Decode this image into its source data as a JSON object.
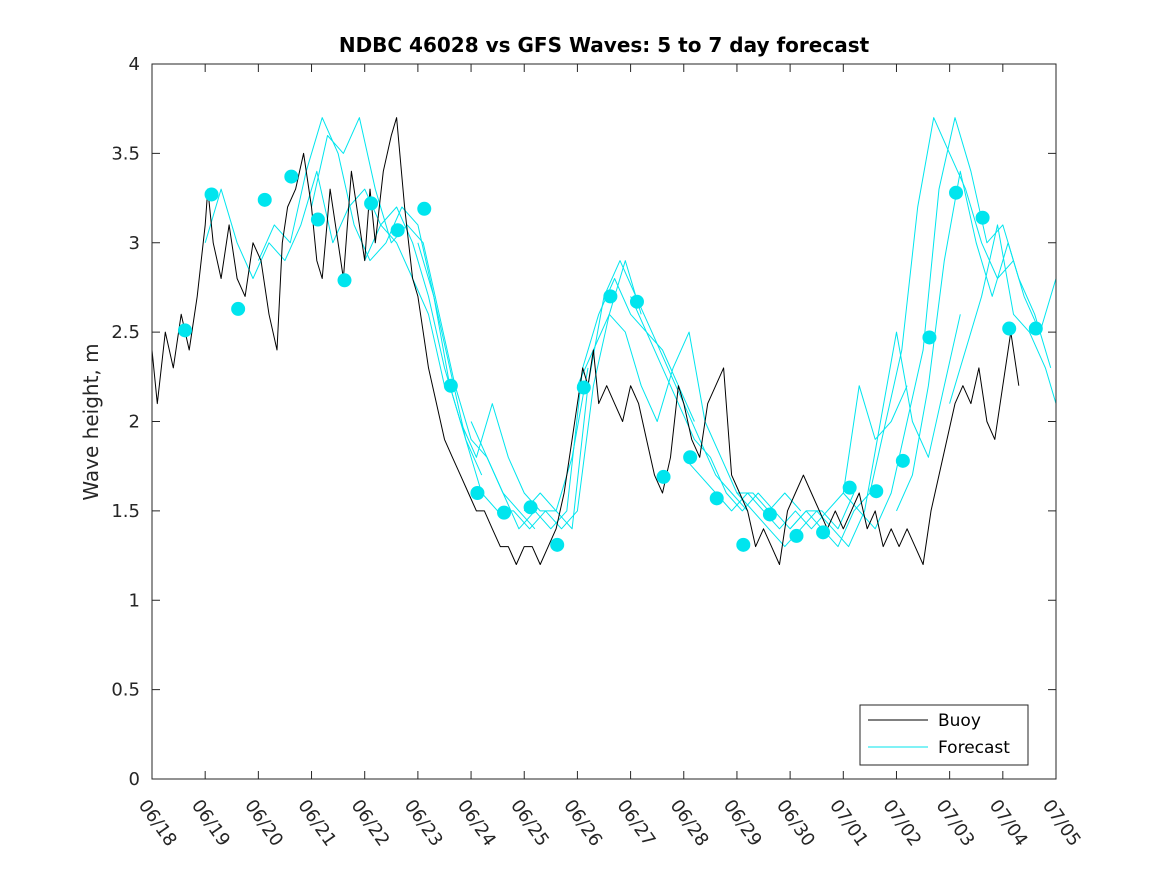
{
  "chart_data": {
    "type": "line",
    "title": "NDBC 46028 vs GFS Waves: 5 to 7 day forecast",
    "ylabel": "Wave height, m",
    "xlabel": "",
    "ylim": [
      0,
      4
    ],
    "yticks": [
      0,
      0.5,
      1,
      1.5,
      2,
      2.5,
      3,
      3.5,
      4
    ],
    "ytick_labels": [
      "0",
      "0.5",
      "1",
      "1.5",
      "2",
      "2.5",
      "3",
      "3.5",
      "4"
    ],
    "x_range_days": [
      0,
      17
    ],
    "xticks": [
      0,
      1,
      2,
      3,
      4,
      5,
      6,
      7,
      8,
      9,
      10,
      11,
      12,
      13,
      14,
      15,
      16,
      17
    ],
    "xtick_labels": [
      "06/18",
      "06/19",
      "06/20",
      "06/21",
      "06/22",
      "06/23",
      "06/24",
      "06/25",
      "06/26",
      "06/27",
      "06/28",
      "06/29",
      "06/30",
      "07/01",
      "07/02",
      "07/03",
      "07/04",
      "07/05"
    ],
    "legend": {
      "placement": "bottom-right",
      "entries": [
        "Buoy",
        "Forecast"
      ]
    },
    "colors": {
      "buoy": "#000000",
      "forecast": "#00e5ee",
      "marker": "#00e5ee"
    },
    "series": [
      {
        "name": "Buoy",
        "kind": "buoy",
        "x": [
          0,
          0.1,
          0.25,
          0.4,
          0.55,
          0.7,
          0.85,
          1.0,
          1.05,
          1.15,
          1.3,
          1.45,
          1.6,
          1.75,
          1.9,
          2.05,
          2.2,
          2.35,
          2.45,
          2.55,
          2.7,
          2.85,
          3.0,
          3.1,
          3.2,
          3.35,
          3.5,
          3.6,
          3.75,
          3.9,
          4.0,
          4.1,
          4.2,
          4.35,
          4.5,
          4.6,
          4.75,
          4.9,
          5.0,
          5.1,
          5.2,
          5.35,
          5.5,
          5.65,
          5.8,
          5.95,
          6.1,
          6.25,
          6.4,
          6.55,
          6.7,
          6.85,
          7.0,
          7.15,
          7.3,
          7.45,
          7.6,
          7.75,
          7.9,
          8.0,
          8.1,
          8.2,
          8.3,
          8.4,
          8.55,
          8.7,
          8.85,
          9.0,
          9.15,
          9.3,
          9.45,
          9.6,
          9.75,
          9.9,
          10.0,
          10.15,
          10.3,
          10.45,
          10.6,
          10.75,
          10.9,
          11.05,
          11.2,
          11.35,
          11.5,
          11.65,
          11.8,
          11.95,
          12.1,
          12.25,
          12.4,
          12.55,
          12.7,
          12.85,
          13.0,
          13.15,
          13.3,
          13.45,
          13.6,
          13.75,
          13.9,
          14.05,
          14.2,
          14.35,
          14.5,
          14.65,
          14.8,
          14.95,
          15.1,
          15.25,
          15.4,
          15.55,
          15.7,
          15.85,
          16.0,
          16.15,
          16.3
        ],
        "y": [
          2.4,
          2.1,
          2.5,
          2.3,
          2.6,
          2.4,
          2.7,
          3.1,
          3.3,
          3.0,
          2.8,
          3.1,
          2.8,
          2.7,
          3.0,
          2.9,
          2.6,
          2.4,
          3.0,
          3.2,
          3.3,
          3.5,
          3.2,
          2.9,
          2.8,
          3.3,
          3.0,
          2.8,
          3.4,
          3.1,
          2.9,
          3.3,
          3.0,
          3.4,
          3.6,
          3.7,
          3.2,
          2.8,
          2.7,
          2.5,
          2.3,
          2.1,
          1.9,
          1.8,
          1.7,
          1.6,
          1.5,
          1.5,
          1.4,
          1.3,
          1.3,
          1.2,
          1.3,
          1.3,
          1.2,
          1.3,
          1.4,
          1.6,
          1.9,
          2.1,
          2.3,
          2.2,
          2.4,
          2.1,
          2.2,
          2.1,
          2.0,
          2.2,
          2.1,
          1.9,
          1.7,
          1.6,
          1.8,
          2.2,
          2.1,
          1.9,
          1.8,
          2.1,
          2.2,
          2.3,
          1.7,
          1.6,
          1.5,
          1.3,
          1.4,
          1.3,
          1.2,
          1.5,
          1.6,
          1.7,
          1.6,
          1.5,
          1.4,
          1.5,
          1.4,
          1.5,
          1.6,
          1.4,
          1.5,
          1.3,
          1.4,
          1.3,
          1.4,
          1.3,
          1.2,
          1.5,
          1.7,
          1.9,
          2.1,
          2.2,
          2.1,
          2.3,
          2.0,
          1.9,
          2.2,
          2.5,
          2.2
        ]
      },
      {
        "kind": "forecast",
        "x": [
          1.0,
          1.3,
          1.6,
          1.9,
          2.2,
          2.5,
          2.8,
          3.1,
          3.4,
          3.7,
          4.0,
          4.3,
          4.6,
          4.9,
          5.2,
          5.5
        ],
        "y": [
          3.0,
          3.3,
          3.0,
          2.8,
          3.0,
          2.9,
          3.1,
          3.4,
          3.0,
          3.2,
          3.3,
          3.1,
          3.0,
          2.8,
          2.6,
          2.2
        ]
      },
      {
        "kind": "forecast",
        "x": [
          2.0,
          2.3,
          2.6,
          2.9,
          3.2,
          3.5,
          3.8,
          4.1,
          4.4,
          4.7,
          5.0,
          5.3,
          5.6,
          5.9,
          6.2
        ],
        "y": [
          2.9,
          3.1,
          3.0,
          3.4,
          3.7,
          3.5,
          3.1,
          2.9,
          3.0,
          3.2,
          3.1,
          2.7,
          2.2,
          1.9,
          1.7
        ]
      },
      {
        "kind": "forecast",
        "x": [
          3.0,
          3.3,
          3.6,
          3.9,
          4.2,
          4.5,
          4.8,
          5.1,
          5.4,
          5.7,
          6.0,
          6.3,
          6.6,
          6.9,
          7.2
        ],
        "y": [
          3.2,
          3.6,
          3.5,
          3.7,
          3.3,
          3.0,
          3.1,
          3.0,
          2.6,
          2.2,
          1.9,
          1.8,
          1.6,
          1.5,
          1.4
        ]
      },
      {
        "kind": "forecast",
        "x": [
          4.0,
          4.3,
          4.6,
          4.9,
          5.2,
          5.5,
          5.8,
          6.1,
          6.4,
          6.7,
          7.0,
          7.3,
          7.6,
          7.9,
          8.2
        ],
        "y": [
          2.9,
          3.1,
          3.2,
          3.0,
          2.7,
          2.3,
          2.0,
          1.8,
          2.1,
          1.8,
          1.6,
          1.5,
          1.5,
          1.8,
          2.3
        ]
      },
      {
        "kind": "forecast",
        "x": [
          5.0,
          5.3,
          5.6,
          5.9,
          6.2,
          6.5,
          6.8,
          7.1,
          7.4,
          7.7,
          8.0,
          8.3,
          8.6,
          8.9,
          9.2
        ],
        "y": [
          3.0,
          2.7,
          2.3,
          1.9,
          1.6,
          1.5,
          1.5,
          1.4,
          1.5,
          1.4,
          1.5,
          2.2,
          2.6,
          2.9,
          2.6
        ]
      },
      {
        "kind": "forecast",
        "x": [
          6.0,
          6.3,
          6.6,
          6.9,
          7.2,
          7.5,
          7.8,
          8.1,
          8.4,
          8.7,
          9.0,
          9.3,
          9.6,
          9.9,
          10.2
        ],
        "y": [
          2.0,
          1.8,
          1.6,
          1.4,
          1.5,
          1.4,
          1.5,
          2.3,
          2.6,
          2.8,
          2.6,
          2.5,
          2.4,
          2.2,
          2.0
        ]
      },
      {
        "kind": "forecast",
        "x": [
          7.0,
          7.3,
          7.6,
          7.9,
          8.2,
          8.5,
          8.8,
          9.1,
          9.4,
          9.7,
          10.0,
          10.3,
          10.6,
          10.9,
          11.2
        ],
        "y": [
          1.5,
          1.6,
          1.5,
          1.4,
          2.2,
          2.7,
          2.9,
          2.7,
          2.5,
          2.3,
          2.1,
          1.9,
          1.7,
          1.6,
          1.5
        ]
      },
      {
        "kind": "forecast",
        "x": [
          8.0,
          8.3,
          8.6,
          8.9,
          9.2,
          9.5,
          9.8,
          10.1,
          10.4,
          10.7,
          11.0,
          11.3,
          11.6,
          11.9,
          12.2
        ],
        "y": [
          2.2,
          2.4,
          2.6,
          2.5,
          2.2,
          2.0,
          2.3,
          2.5,
          2.0,
          1.8,
          1.6,
          1.6,
          1.5,
          1.6,
          1.5
        ]
      },
      {
        "kind": "forecast",
        "x": [
          9.0,
          9.3,
          9.6,
          9.9,
          10.2,
          10.5,
          10.8,
          11.1,
          11.4,
          11.7,
          12.0,
          12.3,
          12.6,
          12.9,
          13.2
        ],
        "y": [
          2.7,
          2.5,
          2.3,
          2.1,
          1.9,
          1.8,
          1.6,
          1.5,
          1.6,
          1.5,
          1.4,
          1.5,
          1.5,
          1.4,
          1.6
        ]
      },
      {
        "kind": "forecast",
        "x": [
          10.0,
          10.3,
          10.6,
          10.9,
          11.2,
          11.5,
          11.8,
          12.1,
          12.4,
          12.7,
          13.0,
          13.3,
          13.6,
          13.9,
          14.2
        ],
        "y": [
          1.8,
          1.7,
          1.6,
          1.5,
          1.6,
          1.5,
          1.4,
          1.5,
          1.4,
          1.5,
          1.6,
          2.2,
          1.9,
          2.0,
          2.2
        ]
      },
      {
        "kind": "forecast",
        "x": [
          11.0,
          11.3,
          11.6,
          11.9,
          12.2,
          12.5,
          12.8,
          13.1,
          13.4,
          13.7,
          14.0,
          14.3,
          14.6,
          14.9,
          15.2
        ],
        "y": [
          1.6,
          1.5,
          1.4,
          1.3,
          1.4,
          1.5,
          1.4,
          1.3,
          1.5,
          2.0,
          2.5,
          2.0,
          1.8,
          2.2,
          2.6
        ]
      },
      {
        "kind": "forecast",
        "x": [
          12.0,
          12.3,
          12.6,
          12.9,
          13.2,
          13.5,
          13.8,
          14.1,
          14.4,
          14.7,
          15.0,
          15.3,
          15.6,
          15.9,
          16.2
        ],
        "y": [
          1.4,
          1.5,
          1.4,
          1.3,
          1.5,
          1.6,
          2.0,
          2.4,
          3.2,
          3.7,
          3.5,
          3.3,
          3.0,
          2.8,
          2.9
        ]
      },
      {
        "kind": "forecast",
        "x": [
          13.0,
          13.3,
          13.6,
          13.9,
          14.2,
          14.5,
          14.8,
          15.1,
          15.4,
          15.7,
          16.0,
          16.3,
          16.6,
          16.9
        ],
        "y": [
          1.6,
          1.5,
          1.4,
          1.6,
          2.0,
          2.4,
          3.3,
          3.7,
          3.4,
          3.0,
          3.1,
          2.8,
          2.6,
          2.3
        ]
      },
      {
        "kind": "forecast",
        "x": [
          14.0,
          14.3,
          14.6,
          14.9,
          15.2,
          15.5,
          15.8,
          16.1,
          16.4,
          16.7,
          17.0
        ],
        "y": [
          1.5,
          1.7,
          2.2,
          2.9,
          3.4,
          3.0,
          2.7,
          3.0,
          2.7,
          2.5,
          2.8
        ]
      },
      {
        "kind": "forecast",
        "x": [
          15.0,
          15.3,
          15.6,
          15.9,
          16.2,
          16.5,
          16.8,
          17.0
        ],
        "y": [
          2.1,
          2.4,
          2.7,
          3.1,
          2.6,
          2.5,
          2.3,
          2.1
        ]
      }
    ],
    "forecast_markers": {
      "x": [
        0.62,
        1.12,
        1.62,
        2.12,
        2.62,
        3.12,
        3.62,
        4.12,
        4.62,
        5.12,
        5.62,
        6.12,
        6.62,
        7.12,
        7.62,
        8.12,
        8.62,
        9.12,
        9.62,
        10.12,
        10.62,
        11.12,
        11.62,
        12.12,
        12.62,
        13.12,
        13.62,
        14.12,
        14.62,
        15.12,
        15.62,
        16.12,
        16.62
      ],
      "y": [
        2.51,
        3.27,
        2.63,
        3.24,
        3.37,
        3.13,
        2.79,
        3.22,
        3.07,
        3.19,
        2.2,
        1.6,
        1.49,
        1.52,
        1.31,
        2.19,
        2.7,
        2.67,
        1.69,
        1.8,
        1.57,
        1.31,
        1.48,
        1.36,
        1.38,
        1.63,
        1.61,
        1.78,
        2.47,
        3.28,
        3.14,
        2.52,
        2.52
      ]
    }
  }
}
